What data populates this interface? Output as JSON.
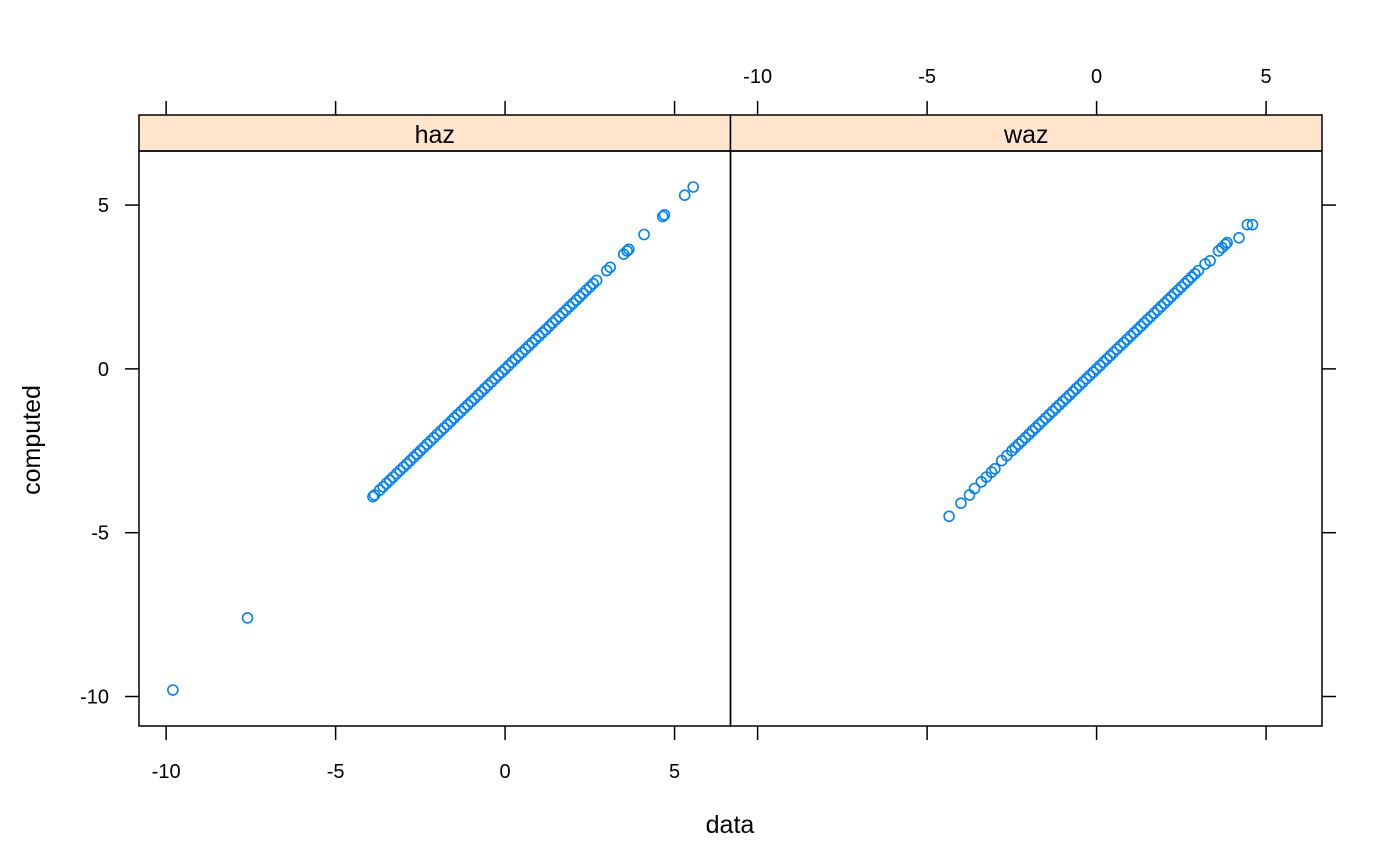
{
  "chart_data": {
    "type": "scatter",
    "xlabel": "data",
    "ylabel": "computed",
    "xlim": [
      -10.8,
      6.65
    ],
    "ylim": [
      -10.9,
      6.65
    ],
    "x_ticks": [
      "-10",
      "-5",
      "0",
      "5"
    ],
    "y_ticks": [
      "-10",
      "-5",
      "0",
      "5"
    ],
    "x_tick_values": [
      -10,
      -5,
      0,
      5
    ],
    "y_tick_values": [
      -10,
      -5,
      0,
      5
    ],
    "point_color": "#0080ff",
    "strip_color": "#ffe5cc",
    "panels": [
      {
        "name": "haz",
        "x": [
          -9.8,
          -7.6,
          -3.9,
          -3.85,
          -3.7,
          -3.6,
          -3.5,
          -3.4,
          -3.3,
          -3.2,
          -3.1,
          -3.0,
          -2.9,
          -2.8,
          -2.7,
          -2.6,
          -2.5,
          -2.4,
          -2.3,
          -2.2,
          -2.1,
          -2.0,
          -1.9,
          -1.8,
          -1.7,
          -1.6,
          -1.5,
          -1.4,
          -1.3,
          -1.2,
          -1.1,
          -1.0,
          -0.9,
          -0.8,
          -0.7,
          -0.6,
          -0.5,
          -0.4,
          -0.3,
          -0.2,
          -0.1,
          0.0,
          0.1,
          0.2,
          0.3,
          0.4,
          0.5,
          0.6,
          0.7,
          0.8,
          0.9,
          1.0,
          1.1,
          1.2,
          1.3,
          1.4,
          1.5,
          1.6,
          1.7,
          1.8,
          1.9,
          2.0,
          2.1,
          2.2,
          2.3,
          2.4,
          2.5,
          2.6,
          2.7,
          3.0,
          3.1,
          3.5,
          3.6,
          3.65,
          4.1,
          4.65,
          4.7,
          5.3,
          5.55
        ],
        "y": [
          -9.8,
          -7.6,
          -3.9,
          -3.85,
          -3.7,
          -3.6,
          -3.5,
          -3.4,
          -3.3,
          -3.2,
          -3.1,
          -3.0,
          -2.9,
          -2.8,
          -2.7,
          -2.6,
          -2.5,
          -2.4,
          -2.3,
          -2.2,
          -2.1,
          -2.0,
          -1.9,
          -1.8,
          -1.7,
          -1.6,
          -1.5,
          -1.4,
          -1.3,
          -1.2,
          -1.1,
          -1.0,
          -0.9,
          -0.8,
          -0.7,
          -0.6,
          -0.5,
          -0.4,
          -0.3,
          -0.2,
          -0.1,
          0.0,
          0.1,
          0.2,
          0.3,
          0.4,
          0.5,
          0.6,
          0.7,
          0.8,
          0.9,
          1.0,
          1.1,
          1.2,
          1.3,
          1.4,
          1.5,
          1.6,
          1.7,
          1.8,
          1.9,
          2.0,
          2.1,
          2.2,
          2.3,
          2.4,
          2.5,
          2.6,
          2.7,
          3.0,
          3.1,
          3.5,
          3.6,
          3.65,
          4.1,
          4.65,
          4.7,
          5.3,
          5.55
        ]
      },
      {
        "name": "waz",
        "x": [
          -4.35,
          -4.0,
          -3.75,
          -3.6,
          -3.4,
          -3.25,
          -3.1,
          -3.0,
          -2.8,
          -2.65,
          -2.5,
          -2.4,
          -2.3,
          -2.2,
          -2.1,
          -2.0,
          -1.9,
          -1.8,
          -1.7,
          -1.6,
          -1.5,
          -1.4,
          -1.3,
          -1.2,
          -1.1,
          -1.0,
          -0.9,
          -0.8,
          -0.7,
          -0.6,
          -0.5,
          -0.4,
          -0.3,
          -0.2,
          -0.1,
          0.0,
          0.1,
          0.2,
          0.3,
          0.4,
          0.5,
          0.6,
          0.7,
          0.8,
          0.9,
          1.0,
          1.1,
          1.2,
          1.3,
          1.4,
          1.5,
          1.6,
          1.7,
          1.8,
          1.9,
          2.0,
          2.1,
          2.2,
          2.3,
          2.4,
          2.5,
          2.6,
          2.7,
          2.8,
          2.9,
          3.0,
          3.2,
          3.35,
          3.6,
          3.7,
          3.8,
          3.85,
          4.2,
          4.45,
          4.6
        ],
        "y": [
          -4.5,
          -4.1,
          -3.85,
          -3.65,
          -3.45,
          -3.3,
          -3.15,
          -3.05,
          -2.8,
          -2.65,
          -2.5,
          -2.4,
          -2.3,
          -2.2,
          -2.1,
          -2.0,
          -1.9,
          -1.8,
          -1.7,
          -1.6,
          -1.5,
          -1.4,
          -1.3,
          -1.2,
          -1.1,
          -1.0,
          -0.9,
          -0.8,
          -0.7,
          -0.6,
          -0.5,
          -0.4,
          -0.3,
          -0.2,
          -0.1,
          0.0,
          0.1,
          0.2,
          0.3,
          0.4,
          0.5,
          0.6,
          0.7,
          0.8,
          0.9,
          1.0,
          1.1,
          1.2,
          1.3,
          1.4,
          1.5,
          1.6,
          1.7,
          1.8,
          1.9,
          2.0,
          2.1,
          2.2,
          2.3,
          2.4,
          2.5,
          2.6,
          2.7,
          2.8,
          2.9,
          3.0,
          3.2,
          3.3,
          3.6,
          3.7,
          3.8,
          3.85,
          4.0,
          4.4,
          4.4
        ]
      }
    ]
  }
}
